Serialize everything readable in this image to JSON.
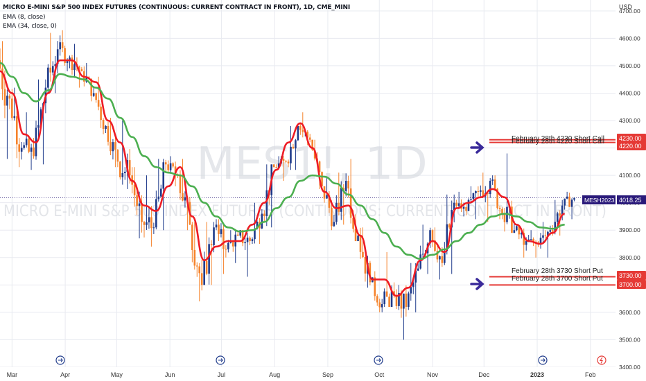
{
  "header": {
    "title": "MICRO E-MINI S&P 500 INDEX FUTURES (CONTINUOUS: CURRENT CONTRACT IN FRONT), 1D, CME_MINI",
    "ema_fast": "EMA (8, close)",
    "ema_slow": "EMA (34, close, 0)"
  },
  "watermark": {
    "symbol": "MES1!, 1D",
    "name": "MICRO E-MINI S&P 500 INDEX FUTURES (CONTINUOUS: CURRENT CONTRACT IN FRONT)"
  },
  "price_axis": {
    "currency": "USD",
    "ticks": [
      "3400.00",
      "3500.00",
      "3600.00",
      "3700.00",
      "3800.00",
      "3900.00",
      "4000.00",
      "4100.00",
      "4200.00",
      "4300.00",
      "4400.00",
      "4500.00",
      "4600.00",
      "4700.00"
    ]
  },
  "time_axis": {
    "labels": [
      "Mar",
      "Apr",
      "May",
      "Jun",
      "Jul",
      "Aug",
      "Sep",
      "Oct",
      "Nov",
      "Dec",
      "2023",
      "Feb"
    ]
  },
  "annotations": {
    "call_upper": "February 28th 4230 Short Call",
    "call_lower": "February 28th 4220 Short Call",
    "put_upper": "February 28th 3730 Short Put",
    "put_lower": "February 28th 3700 Short Put"
  },
  "price_tags": {
    "t4230": "4230.00",
    "t4220": "4220.00",
    "t3730": "3730.00",
    "t3700": "3700.00",
    "symbol_tag": "MESH2023",
    "last_price": "4018.25"
  },
  "colors": {
    "up": "#1e3a8a",
    "down": "#f5822a",
    "ema_fast": "#ee1c25",
    "ema_slow": "#4caf50",
    "level": "#e53935",
    "arrow": "#3a2a9a",
    "tag": "#e53935",
    "symbol_tag": "#2a1a7a",
    "grid": "#e8eaf0"
  },
  "chart_data": {
    "type": "candlestick",
    "y_scale": "linear",
    "ylim": [
      3400,
      4740
    ],
    "grid": true,
    "x_range": [
      "2022-02-22",
      "2023-02-14"
    ],
    "horizontal_levels": [
      4230,
      4220,
      3730,
      3700
    ],
    "last_price": 4018.25,
    "series": [
      {
        "name": "EMA (8, close)",
        "points": [
          [
            "2022-02-22",
            4480
          ],
          [
            "2022-03-01",
            4400
          ],
          [
            "2022-03-08",
            4250
          ],
          [
            "2022-03-15",
            4220
          ],
          [
            "2022-03-22",
            4400
          ],
          [
            "2022-03-29",
            4520
          ],
          [
            "2022-04-05",
            4520
          ],
          [
            "2022-04-12",
            4460
          ],
          [
            "2022-04-19",
            4440
          ],
          [
            "2022-04-26",
            4300
          ],
          [
            "2022-05-03",
            4220
          ],
          [
            "2022-05-10",
            4080
          ],
          [
            "2022-05-17",
            3990
          ],
          [
            "2022-05-24",
            3970
          ],
          [
            "2022-05-31",
            4060
          ],
          [
            "2022-06-07",
            4130
          ],
          [
            "2022-06-14",
            3950
          ],
          [
            "2022-06-21",
            3790
          ],
          [
            "2022-06-28",
            3840
          ],
          [
            "2022-07-05",
            3860
          ],
          [
            "2022-07-12",
            3860
          ],
          [
            "2022-07-19",
            3920
          ],
          [
            "2022-07-26",
            4000
          ],
          [
            "2022-08-02",
            4120
          ],
          [
            "2022-08-09",
            4220
          ],
          [
            "2022-08-16",
            4290
          ],
          [
            "2022-08-23",
            4200
          ],
          [
            "2022-08-30",
            4040
          ],
          [
            "2022-09-06",
            3980
          ],
          [
            "2022-09-13",
            3990
          ],
          [
            "2022-09-20",
            3880
          ],
          [
            "2022-09-27",
            3720
          ],
          [
            "2022-10-04",
            3720
          ],
          [
            "2022-10-11",
            3660
          ],
          [
            "2022-10-18",
            3690
          ],
          [
            "2022-10-25",
            3790
          ],
          [
            "2022-11-01",
            3860
          ],
          [
            "2022-11-08",
            3820
          ],
          [
            "2022-11-15",
            3980
          ],
          [
            "2022-11-22",
            4000
          ],
          [
            "2022-11-29",
            4020
          ],
          [
            "2022-12-06",
            4050
          ],
          [
            "2022-12-13",
            4020
          ],
          [
            "2022-12-20",
            3920
          ],
          [
            "2022-12-27",
            3860
          ],
          [
            "2023-01-03",
            3850
          ],
          [
            "2023-01-10",
            3890
          ],
          [
            "2023-01-17",
            3960
          ]
        ]
      },
      {
        "name": "EMA (34, close, 0)",
        "points": [
          [
            "2022-02-22",
            4510
          ],
          [
            "2022-03-01",
            4460
          ],
          [
            "2022-03-08",
            4400
          ],
          [
            "2022-03-15",
            4370
          ],
          [
            "2022-03-22",
            4410
          ],
          [
            "2022-03-29",
            4470
          ],
          [
            "2022-04-05",
            4460
          ],
          [
            "2022-04-12",
            4450
          ],
          [
            "2022-04-19",
            4420
          ],
          [
            "2022-04-26",
            4380
          ],
          [
            "2022-05-03",
            4310
          ],
          [
            "2022-05-10",
            4240
          ],
          [
            "2022-05-17",
            4170
          ],
          [
            "2022-05-24",
            4130
          ],
          [
            "2022-05-31",
            4110
          ],
          [
            "2022-06-07",
            4100
          ],
          [
            "2022-06-14",
            4060
          ],
          [
            "2022-06-21",
            4000
          ],
          [
            "2022-06-28",
            3950
          ],
          [
            "2022-07-05",
            3910
          ],
          [
            "2022-07-12",
            3895
          ],
          [
            "2022-07-19",
            3900
          ],
          [
            "2022-07-26",
            3930
          ],
          [
            "2022-08-02",
            3980
          ],
          [
            "2022-08-09",
            4020
          ],
          [
            "2022-08-16",
            4080
          ],
          [
            "2022-08-23",
            4100
          ],
          [
            "2022-08-30",
            4095
          ],
          [
            "2022-09-06",
            4070
          ],
          [
            "2022-09-13",
            4030
          ],
          [
            "2022-09-20",
            3990
          ],
          [
            "2022-09-27",
            3940
          ],
          [
            "2022-10-04",
            3890
          ],
          [
            "2022-10-11",
            3840
          ],
          [
            "2022-10-18",
            3810
          ],
          [
            "2022-10-25",
            3795
          ],
          [
            "2022-11-01",
            3810
          ],
          [
            "2022-11-08",
            3830
          ],
          [
            "2022-11-15",
            3860
          ],
          [
            "2022-11-22",
            3890
          ],
          [
            "2022-11-29",
            3920
          ],
          [
            "2022-12-06",
            3950
          ],
          [
            "2022-12-13",
            3960
          ],
          [
            "2022-12-20",
            3950
          ],
          [
            "2022-12-27",
            3930
          ],
          [
            "2023-01-03",
            3910
          ],
          [
            "2023-01-10",
            3905
          ],
          [
            "2023-01-17",
            3920
          ]
        ]
      }
    ],
    "candles_weekly": [
      {
        "date": "2022-02-22",
        "o": 4520,
        "h": 4590,
        "l": 4160,
        "c": 4380
      },
      {
        "date": "2022-03-01",
        "o": 4380,
        "h": 4420,
        "l": 4130,
        "c": 4200
      },
      {
        "date": "2022-03-08",
        "o": 4200,
        "h": 4330,
        "l": 4120,
        "c": 4170
      },
      {
        "date": "2022-03-15",
        "o": 4170,
        "h": 4450,
        "l": 4140,
        "c": 4420
      },
      {
        "date": "2022-03-22",
        "o": 4420,
        "h": 4620,
        "l": 4400,
        "c": 4560
      },
      {
        "date": "2022-03-29",
        "o": 4560,
        "h": 4630,
        "l": 4480,
        "c": 4530
      },
      {
        "date": "2022-04-05",
        "o": 4530,
        "h": 4580,
        "l": 4420,
        "c": 4480
      },
      {
        "date": "2022-04-12",
        "o": 4480,
        "h": 4510,
        "l": 4370,
        "c": 4400
      },
      {
        "date": "2022-04-19",
        "o": 4400,
        "h": 4460,
        "l": 4250,
        "c": 4280
      },
      {
        "date": "2022-04-26",
        "o": 4280,
        "h": 4310,
        "l": 4130,
        "c": 4150
      },
      {
        "date": "2022-05-03",
        "o": 4150,
        "h": 4300,
        "l": 4050,
        "c": 4100
      },
      {
        "date": "2022-05-10",
        "o": 4100,
        "h": 4130,
        "l": 3870,
        "c": 3930
      },
      {
        "date": "2022-05-17",
        "o": 3930,
        "h": 4100,
        "l": 3840,
        "c": 3910
      },
      {
        "date": "2022-05-24",
        "o": 3910,
        "h": 4160,
        "l": 3900,
        "c": 4140
      },
      {
        "date": "2022-05-31",
        "o": 4140,
        "h": 4170,
        "l": 4060,
        "c": 4100
      },
      {
        "date": "2022-06-07",
        "o": 4100,
        "h": 4160,
        "l": 3900,
        "c": 3920
      },
      {
        "date": "2022-06-14",
        "o": 3920,
        "h": 3930,
        "l": 3640,
        "c": 3700
      },
      {
        "date": "2022-06-21",
        "o": 3700,
        "h": 3930,
        "l": 3700,
        "c": 3910
      },
      {
        "date": "2022-06-28",
        "o": 3910,
        "h": 3940,
        "l": 3740,
        "c": 3830
      },
      {
        "date": "2022-07-05",
        "o": 3830,
        "h": 3900,
        "l": 3780,
        "c": 3880
      },
      {
        "date": "2022-07-12",
        "o": 3880,
        "h": 3900,
        "l": 3730,
        "c": 3860
      },
      {
        "date": "2022-07-19",
        "o": 3860,
        "h": 4000,
        "l": 3850,
        "c": 3960
      },
      {
        "date": "2022-07-26",
        "o": 3960,
        "h": 4140,
        "l": 3910,
        "c": 4130
      },
      {
        "date": "2022-08-02",
        "o": 4130,
        "h": 4170,
        "l": 4080,
        "c": 4150
      },
      {
        "date": "2022-08-09",
        "o": 4150,
        "h": 4280,
        "l": 4120,
        "c": 4280
      },
      {
        "date": "2022-08-16",
        "o": 4280,
        "h": 4330,
        "l": 4210,
        "c": 4230
      },
      {
        "date": "2022-08-23",
        "o": 4230,
        "h": 4230,
        "l": 4050,
        "c": 4060
      },
      {
        "date": "2022-08-30",
        "o": 4060,
        "h": 4090,
        "l": 3900,
        "c": 3930
      },
      {
        "date": "2022-09-06",
        "o": 3930,
        "h": 4110,
        "l": 3920,
        "c": 4080
      },
      {
        "date": "2022-09-13",
        "o": 4080,
        "h": 4160,
        "l": 3860,
        "c": 3880
      },
      {
        "date": "2022-09-20",
        "o": 3880,
        "h": 3910,
        "l": 3690,
        "c": 3710
      },
      {
        "date": "2022-09-27",
        "o": 3710,
        "h": 3750,
        "l": 3600,
        "c": 3630
      },
      {
        "date": "2022-10-04",
        "o": 3630,
        "h": 3820,
        "l": 3620,
        "c": 3660
      },
      {
        "date": "2022-10-11",
        "o": 3660,
        "h": 3700,
        "l": 3500,
        "c": 3620
      },
      {
        "date": "2022-10-18",
        "o": 3620,
        "h": 3780,
        "l": 3600,
        "c": 3760
      },
      {
        "date": "2022-10-25",
        "o": 3760,
        "h": 3920,
        "l": 3740,
        "c": 3900
      },
      {
        "date": "2022-11-01",
        "o": 3900,
        "h": 3910,
        "l": 3720,
        "c": 3780
      },
      {
        "date": "2022-11-08",
        "o": 3780,
        "h": 4030,
        "l": 3740,
        "c": 4000
      },
      {
        "date": "2022-11-15",
        "o": 4000,
        "h": 4040,
        "l": 3950,
        "c": 3970
      },
      {
        "date": "2022-11-22",
        "o": 3970,
        "h": 4060,
        "l": 3940,
        "c": 4040
      },
      {
        "date": "2022-11-29",
        "o": 4040,
        "h": 4110,
        "l": 3930,
        "c": 4080
      },
      {
        "date": "2022-12-06",
        "o": 4080,
        "h": 4100,
        "l": 3940,
        "c": 3960
      },
      {
        "date": "2022-12-13",
        "o": 3960,
        "h": 4180,
        "l": 3890,
        "c": 3900
      },
      {
        "date": "2022-12-20",
        "o": 3900,
        "h": 3920,
        "l": 3800,
        "c": 3860
      },
      {
        "date": "2022-12-27",
        "o": 3860,
        "h": 3900,
        "l": 3800,
        "c": 3850
      },
      {
        "date": "2023-01-03",
        "o": 3850,
        "h": 3930,
        "l": 3800,
        "c": 3900
      },
      {
        "date": "2023-01-10",
        "o": 3900,
        "h": 4010,
        "l": 3880,
        "c": 3990
      },
      {
        "date": "2023-01-17",
        "o": 3990,
        "h": 4040,
        "l": 3940,
        "c": 4018
      }
    ]
  }
}
